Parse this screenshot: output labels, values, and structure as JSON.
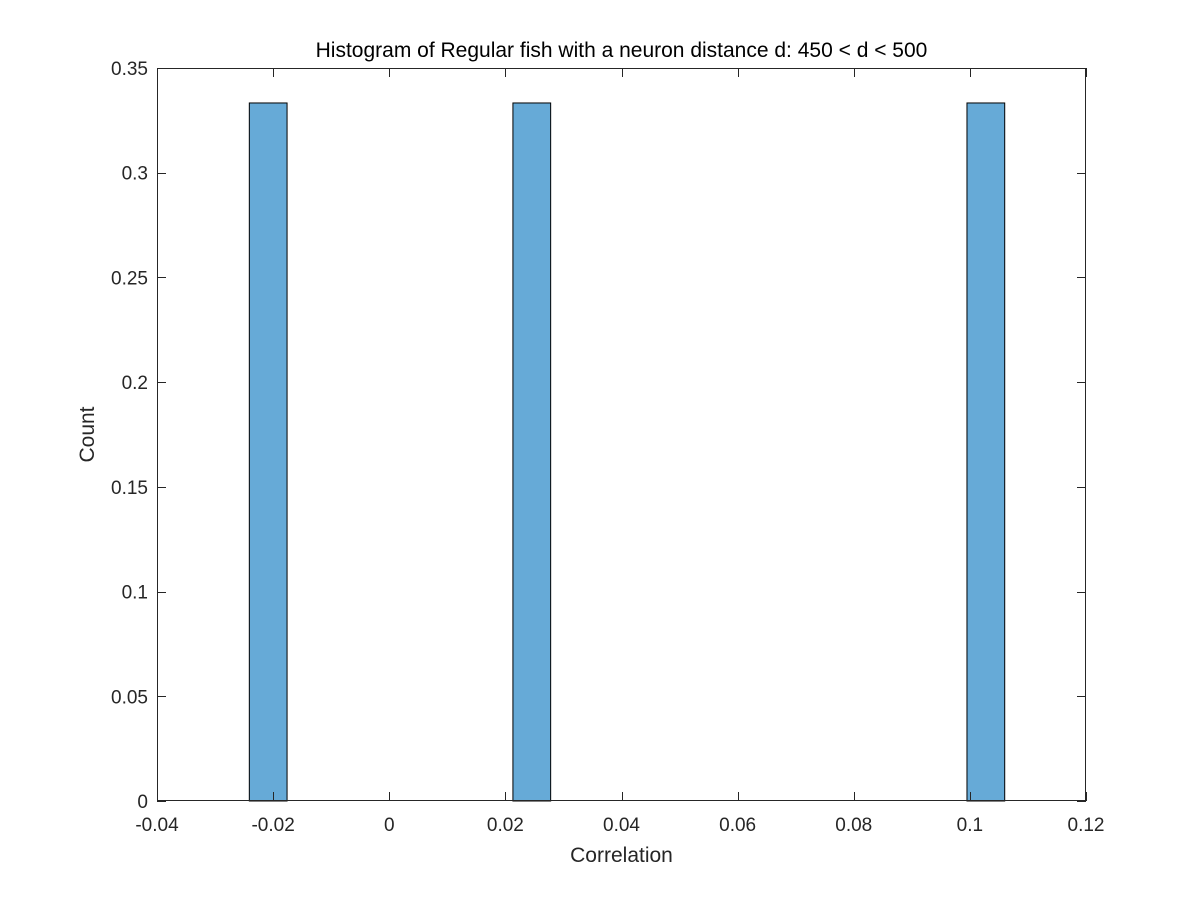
{
  "chart_data": {
    "type": "bar",
    "title": "Histogram of Regular fish with a neuron distance d: 450 < d < 500",
    "xlabel": "Correlation",
    "ylabel": "Count",
    "xlim": [
      -0.04,
      0.12
    ],
    "ylim": [
      0,
      0.35
    ],
    "xticks": [
      -0.04,
      -0.02,
      0,
      0.02,
      0.04,
      0.06,
      0.08,
      0.1,
      0.12
    ],
    "xtick_labels": [
      "-0.04",
      "-0.02",
      "0",
      "0.02",
      "0.04",
      "0.06",
      "0.08",
      "0.1",
      "0.12"
    ],
    "yticks": [
      0,
      0.05,
      0.1,
      0.15,
      0.2,
      0.25,
      0.3,
      0.35
    ],
    "ytick_labels": [
      "0",
      "0.05",
      "0.1",
      "0.15",
      "0.2",
      "0.25",
      "0.3",
      "0.35"
    ],
    "grid": false,
    "bar_color": "#66AAD7",
    "bar_edge_color": "#000000",
    "bins": [
      {
        "start": -0.0241,
        "end": -0.0176,
        "value": 0.3333
      },
      {
        "start": 0.0213,
        "end": 0.0278,
        "value": 0.3333
      },
      {
        "start": 0.0995,
        "end": 0.106,
        "value": 0.3333
      }
    ]
  }
}
